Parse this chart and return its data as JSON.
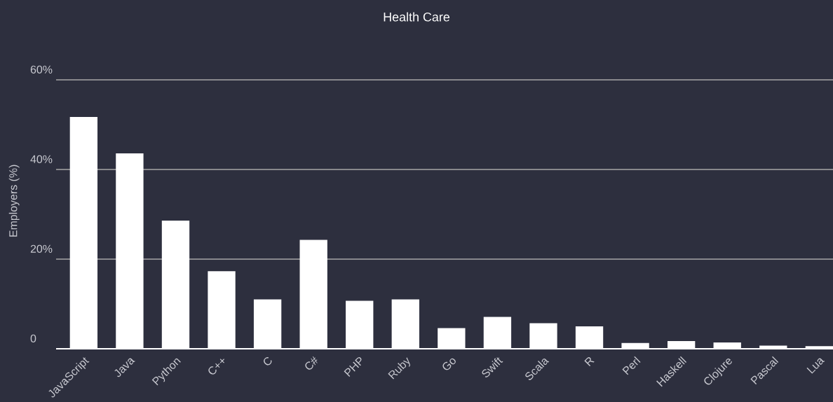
{
  "chart_data": {
    "type": "bar",
    "title": "Health Care",
    "ylabel": "Employers (%)",
    "categories": [
      "JavaScript",
      "Java",
      "Python",
      "C++",
      "C",
      "C#",
      "PHP",
      "Ruby",
      "Go",
      "Swift",
      "Scala",
      "R",
      "Perl",
      "Haskell",
      "Clojure",
      "Pascal",
      "Lua"
    ],
    "values": [
      51.7,
      43.6,
      28.6,
      17.3,
      11.0,
      24.3,
      10.7,
      11.0,
      4.6,
      7.1,
      5.7,
      5.0,
      1.3,
      1.7,
      1.4,
      0.7,
      0.6
    ],
    "color": "#ffffff",
    "ylim": [
      0,
      60
    ],
    "yticks": [
      {
        "value": 0,
        "label": "0"
      },
      {
        "value": 20,
        "label": "20%"
      },
      {
        "value": 40,
        "label": "40%"
      },
      {
        "value": 60,
        "label": "60%"
      }
    ],
    "grid": "y"
  }
}
